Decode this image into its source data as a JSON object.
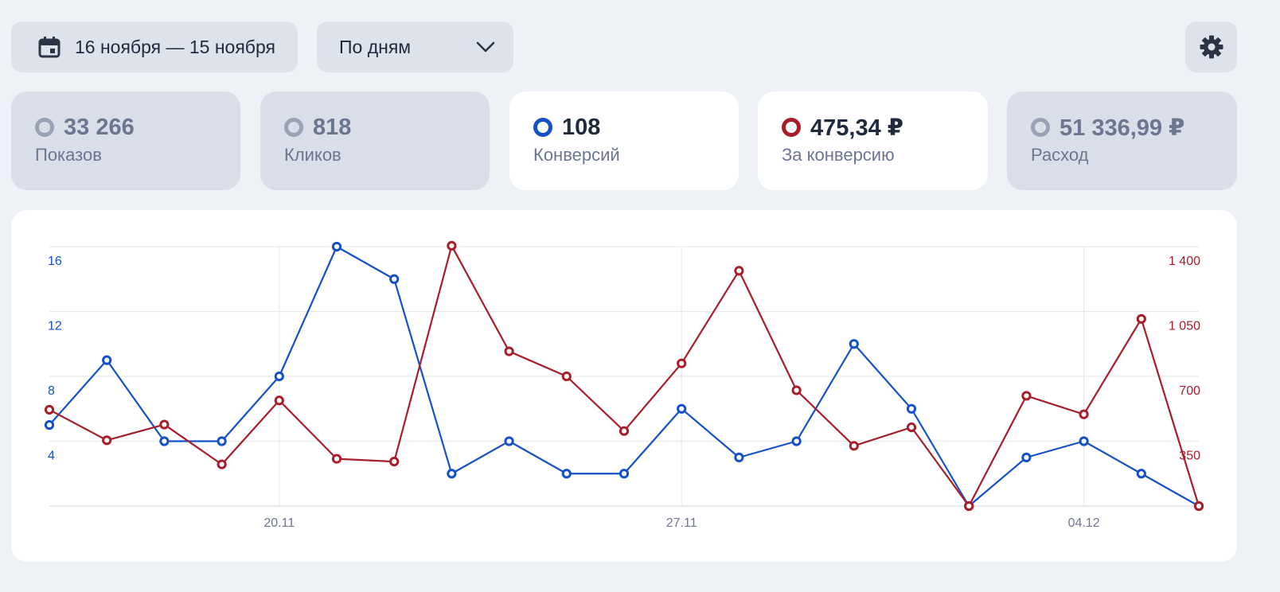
{
  "toolbar": {
    "date_range": "16 ноября — 15 ноября",
    "grouping": "По дням",
    "calendar_icon": "calendar-icon",
    "chevron_icon": "chevron-down-icon",
    "settings_icon": "gear-icon"
  },
  "metrics": [
    {
      "value": "33 266",
      "label": "Показов",
      "active": false,
      "color": "#9aa3b5"
    },
    {
      "value": "818",
      "label": "Кликов",
      "active": false,
      "color": "#9aa3b5"
    },
    {
      "value": "108",
      "label": "Конверсий",
      "active": true,
      "color": "#1450c8"
    },
    {
      "value": "475,34 ₽",
      "label": "За конверсию",
      "active": true,
      "color": "#a71d2a"
    },
    {
      "value": "51 336,99 ₽",
      "label": "Расход",
      "active": false,
      "color": "#9aa3b5"
    }
  ],
  "chart_data": {
    "type": "line",
    "categories": [
      "16.11",
      "17.11",
      "18.11",
      "19.11",
      "20.11",
      "21.11",
      "22.11",
      "23.11",
      "24.11",
      "25.11",
      "26.11",
      "27.11",
      "28.11",
      "29.11",
      "30.11",
      "01.12",
      "02.12",
      "03.12",
      "04.12",
      "05.12",
      "06.12"
    ],
    "x_tick_labels": [
      {
        "index": 4,
        "label": "20.11"
      },
      {
        "index": 11,
        "label": "27.11"
      },
      {
        "index": 18,
        "label": "04.12"
      }
    ],
    "series": [
      {
        "name": "Конверсий",
        "axis": "left",
        "color": "#1450c8",
        "values": [
          5,
          9,
          4,
          4,
          8,
          16,
          14,
          2,
          4,
          2,
          2,
          6,
          3,
          4,
          10,
          6,
          0,
          3,
          4,
          2,
          0
        ]
      },
      {
        "name": "За конверсию",
        "axis": "right",
        "color": "#a71d2a",
        "values": [
          520,
          355,
          440,
          225,
          570,
          255,
          240,
          1405,
          835,
          700,
          405,
          770,
          1270,
          625,
          325,
          425,
          0,
          595,
          495,
          1010,
          0
        ]
      }
    ],
    "y_left": {
      "min": 0,
      "max": 16,
      "ticks": [
        4,
        8,
        12,
        16
      ],
      "tick_labels": [
        "4",
        "8",
        "12",
        "16"
      ],
      "color": "#1450c8"
    },
    "y_right": {
      "min": 0,
      "max": 1400,
      "ticks": [
        350,
        700,
        1050,
        1400
      ],
      "tick_labels": [
        "350",
        "700",
        "1 050",
        "1 400"
      ],
      "color": "#a71d2a"
    },
    "grid": true
  }
}
